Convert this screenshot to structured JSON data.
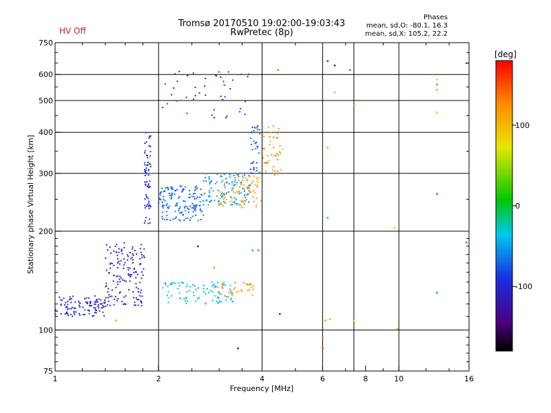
{
  "header": {
    "status": "HV Off",
    "title_line1": "Tromsø 20170510 19:02:00-19:03:43",
    "title_line2": "RwPretec (8p)",
    "phases_title": "Phases",
    "phases_o": "mean, sd,O: -80.1, 16.3",
    "phases_x": "mean, sd,X: 105.2, 22.2"
  },
  "colorbar": {
    "unit": "[deg]",
    "ticks": [
      "100",
      "0",
      "-100"
    ],
    "range": [
      -180,
      180
    ],
    "tick_values": [
      100,
      0,
      -100
    ]
  },
  "colors": {
    "hv_off": "#cc2020",
    "grid": "#000000"
  },
  "chart_data": {
    "type": "scatter",
    "title": "Tromsø 20170510 19:02:00-19:03:43",
    "subtitle": "RwPretec (8p)",
    "xlabel": "Frequency [MHz]",
    "ylabel": "Stationary phase Virtual Height [km]",
    "x_scale": "log",
    "y_scale": "log",
    "xlim": [
      1,
      16
    ],
    "ylim": [
      75,
      750
    ],
    "x_ticks": [
      1,
      2,
      4,
      6,
      8,
      10,
      16
    ],
    "x_tick_labels": [
      "1",
      "2",
      "4",
      "6",
      "8",
      "10",
      "16"
    ],
    "y_ticks": [
      75,
      100,
      200,
      300,
      400,
      500,
      600,
      750
    ],
    "y_tick_labels": [
      "75",
      "100",
      "200",
      "300",
      "400",
      "500",
      "600",
      "750"
    ],
    "grid_x": [
      2,
      4,
      6,
      7.4,
      10
    ],
    "grid_y": [
      100,
      200,
      300,
      400,
      500,
      600
    ],
    "color_variable": "phase [deg]",
    "traces": [
      {
        "fmin": 1.0,
        "fmax": 1.4,
        "hmin": 110,
        "hmax": 127,
        "phase": -100,
        "count": 110
      },
      {
        "fmin": 1.4,
        "fmax": 1.82,
        "hmin": 118,
        "hmax": 185,
        "phase": -105,
        "count": 150
      },
      {
        "fmin": 1.82,
        "fmax": 1.9,
        "hmin": 210,
        "hmax": 400,
        "phase": -95,
        "count": 70
      },
      {
        "fmin": 2.0,
        "fmax": 2.7,
        "hmin": 215,
        "hmax": 275,
        "phase": -70,
        "count": 150
      },
      {
        "fmin": 2.7,
        "fmax": 3.7,
        "hmin": 240,
        "hmax": 300,
        "phase": -55,
        "count": 110
      },
      {
        "fmin": 3.0,
        "fmax": 4.0,
        "hmin": 235,
        "hmax": 295,
        "phase": 115,
        "count": 70
      },
      {
        "fmin": 4.0,
        "fmax": 4.6,
        "hmin": 295,
        "hmax": 420,
        "phase": 125,
        "count": 45
      },
      {
        "fmin": 3.7,
        "fmax": 3.95,
        "hmin": 300,
        "hmax": 420,
        "phase": -80,
        "count": 35
      },
      {
        "fmin": 2.05,
        "fmax": 3.3,
        "hmin": 120,
        "hmax": 140,
        "phase": -40,
        "count": 90
      },
      {
        "fmin": 3.0,
        "fmax": 3.8,
        "hmin": 125,
        "hmax": 140,
        "phase": 120,
        "count": 30
      },
      {
        "fmin": 2.05,
        "fmax": 3.75,
        "hmin": 440,
        "hmax": 620,
        "phase": -95,
        "count": 45
      }
    ],
    "points": [
      {
        "x": 4.45,
        "y": 620,
        "phase": 140
      },
      {
        "x": 6.2,
        "y": 660,
        "phase": -80
      },
      {
        "x": 6.5,
        "y": 640,
        "phase": -100
      },
      {
        "x": 7.2,
        "y": 620,
        "phase": -60
      },
      {
        "x": 6.2,
        "y": 360,
        "phase": 110
      },
      {
        "x": 6.2,
        "y": 220,
        "phase": -30
      },
      {
        "x": 7.4,
        "y": 485,
        "phase": 115
      },
      {
        "x": 6.5,
        "y": 530,
        "phase": 100
      },
      {
        "x": 12.9,
        "y": 580,
        "phase": 80
      },
      {
        "x": 12.9,
        "y": 560,
        "phase": -40
      },
      {
        "x": 12.9,
        "y": 540,
        "phase": 100
      },
      {
        "x": 12.9,
        "y": 460,
        "phase": 95
      },
      {
        "x": 12.9,
        "y": 260,
        "phase": 160
      },
      {
        "x": 12.9,
        "y": 130,
        "phase": -60
      },
      {
        "x": 9.7,
        "y": 205,
        "phase": 80
      },
      {
        "x": 15.7,
        "y": 650,
        "phase": 150
      },
      {
        "x": 15.7,
        "y": 185,
        "phase": -60
      },
      {
        "x": 6.1,
        "y": 107,
        "phase": 120
      },
      {
        "x": 6.0,
        "y": 95,
        "phase": 130
      },
      {
        "x": 6.0,
        "y": 88,
        "phase": 160
      },
      {
        "x": 6.3,
        "y": 108,
        "phase": 60
      },
      {
        "x": 7.4,
        "y": 107,
        "phase": 80
      },
      {
        "x": 4.5,
        "y": 112,
        "phase": -110
      },
      {
        "x": 3.4,
        "y": 88,
        "phase": -120
      },
      {
        "x": 1.5,
        "y": 107,
        "phase": 110
      },
      {
        "x": 9.9,
        "y": 101,
        "phase": 100
      },
      {
        "x": 2.6,
        "y": 180,
        "phase": -100
      },
      {
        "x": 3.75,
        "y": 175,
        "phase": -20
      },
      {
        "x": 3.9,
        "y": 175,
        "phase": -10
      },
      {
        "x": 2.9,
        "y": 155,
        "phase": 30
      }
    ]
  }
}
